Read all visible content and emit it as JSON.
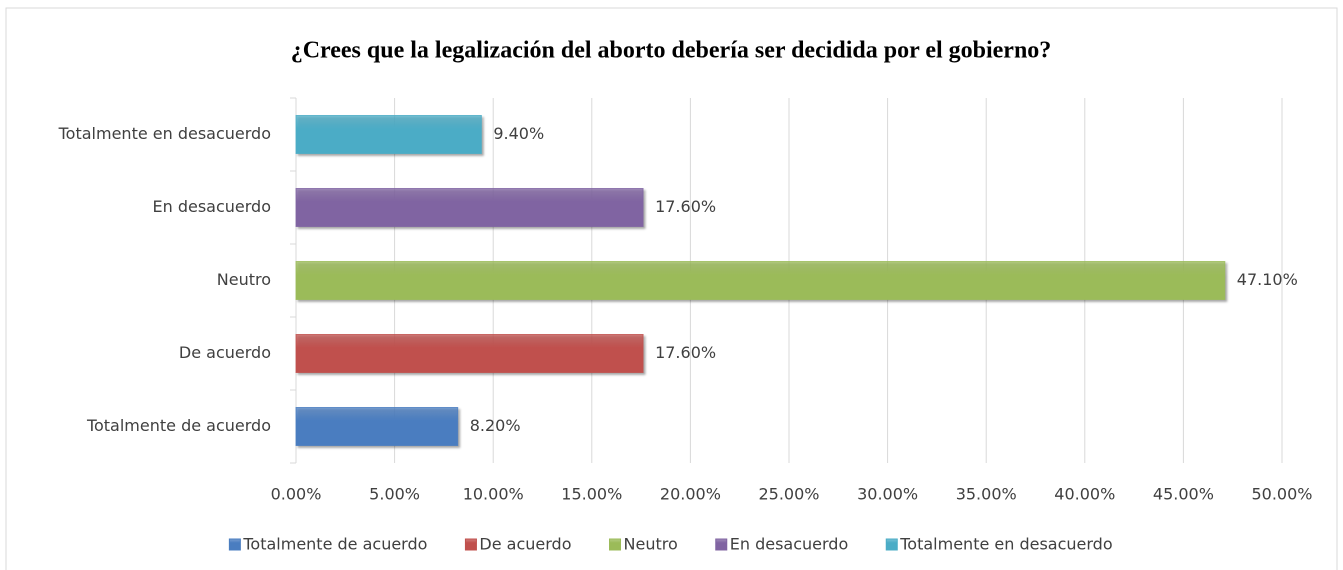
{
  "chart_data": {
    "type": "hbar",
    "title": "¿Crees que la legalización del aborto debería ser decidida por el gobierno?",
    "categories": [
      "Totalmente de acuerdo",
      "De acuerdo",
      "Neutro",
      "En desacuerdo",
      "Totalmente en desacuerdo"
    ],
    "values": [
      8.2,
      17.6,
      47.1,
      17.6,
      9.4
    ],
    "value_labels": [
      "8.20%",
      "17.60%",
      "47.10%",
      "17.60%",
      "9.40%"
    ],
    "colors": [
      "#4a7dc0",
      "#c0504d",
      "#9bbb59",
      "#8064a2",
      "#4bacc6"
    ],
    "xlim": [
      0,
      50
    ],
    "xticks": [
      {
        "value": 0,
        "label": "0.00%"
      },
      {
        "value": 5,
        "label": "5.00%"
      },
      {
        "value": 10,
        "label": "10.00%"
      },
      {
        "value": 15,
        "label": "15.00%"
      },
      {
        "value": 20,
        "label": "20.00%"
      },
      {
        "value": 25,
        "label": "25.00%"
      },
      {
        "value": 30,
        "label": "30.00%"
      },
      {
        "value": 35,
        "label": "35.00%"
      },
      {
        "value": 40,
        "label": "40.00%"
      },
      {
        "value": 45,
        "label": "45.00%"
      },
      {
        "value": 50,
        "label": "50.00%"
      }
    ],
    "grid": true,
    "legend": "bottom"
  }
}
